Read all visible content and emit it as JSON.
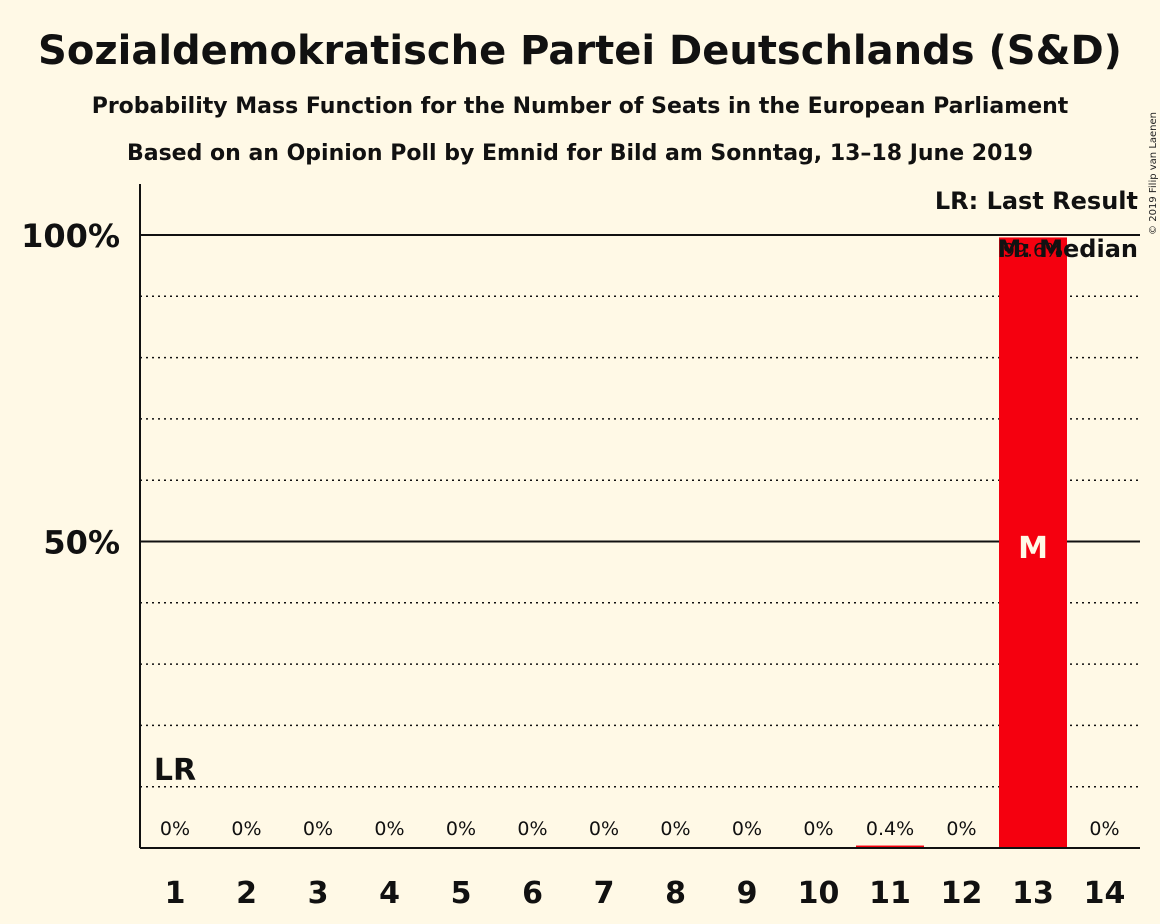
{
  "chart_data": {
    "type": "bar",
    "title": "Sozialdemokratische Partei Deutschlands (S&D)",
    "subtitle": "Probability Mass Function for the Number of Seats in the European Parliament",
    "subtitle2": "Based on an Opinion Poll by Emnid for Bild am Sonntag, 13–18 June 2019",
    "copyright": "© 2019 Filip van Laenen",
    "categories": [
      "1",
      "2",
      "3",
      "4",
      "5",
      "6",
      "7",
      "8",
      "9",
      "10",
      "11",
      "12",
      "13",
      "14"
    ],
    "values": [
      0,
      0,
      0,
      0,
      0,
      0,
      0,
      0,
      0,
      0,
      0.4,
      0,
      99.6,
      0
    ],
    "value_labels": [
      "0%",
      "0%",
      "0%",
      "0%",
      "0%",
      "0%",
      "0%",
      "0%",
      "0%",
      "0%",
      "0.4%",
      "0%",
      "99.6%",
      "0%"
    ],
    "ylim": [
      0,
      100
    ],
    "y_ticks": [
      {
        "value": 50,
        "label": "50%"
      },
      {
        "value": 100,
        "label": "100%"
      }
    ],
    "grid_dotted_values": [
      10,
      20,
      30,
      40,
      60,
      70,
      80,
      90
    ],
    "last_result": {
      "category": "1",
      "label": "LR"
    },
    "median": {
      "category": "13",
      "label": "M"
    },
    "legend": [
      "LR: Last Result",
      "M: Median"
    ],
    "bar_color": "#f5000f",
    "median_label_color": "#fff9e6"
  }
}
